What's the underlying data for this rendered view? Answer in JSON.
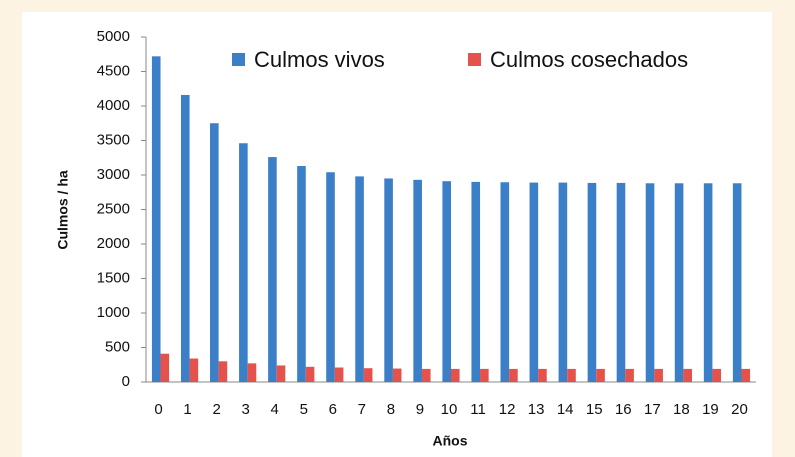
{
  "chart_data": {
    "type": "bar",
    "categories": [
      "0",
      "1",
      "2",
      "3",
      "4",
      "5",
      "6",
      "7",
      "8",
      "9",
      "10",
      "11",
      "12",
      "13",
      "14",
      "15",
      "16",
      "17",
      "18",
      "19",
      "20"
    ],
    "series": [
      {
        "name": "Culmos vivos",
        "color": "#3b7fc9",
        "values": [
          4720,
          4160,
          3750,
          3460,
          3260,
          3130,
          3040,
          2980,
          2950,
          2930,
          2910,
          2900,
          2895,
          2890,
          2890,
          2885,
          2885,
          2880,
          2880,
          2880,
          2880
        ]
      },
      {
        "name": "Culmos cosechados",
        "color": "#e5524b",
        "values": [
          410,
          340,
          300,
          270,
          240,
          220,
          210,
          200,
          195,
          190,
          190,
          190,
          190,
          190,
          190,
          190,
          190,
          190,
          190,
          190,
          190
        ]
      }
    ],
    "ylim": [
      0,
      5000
    ],
    "yticks": [
      0,
      500,
      1000,
      1500,
      2000,
      2500,
      3000,
      3500,
      4000,
      4500,
      5000
    ],
    "ylabel": "Culmos / ha",
    "xlabel": "Años",
    "legend": "top"
  }
}
